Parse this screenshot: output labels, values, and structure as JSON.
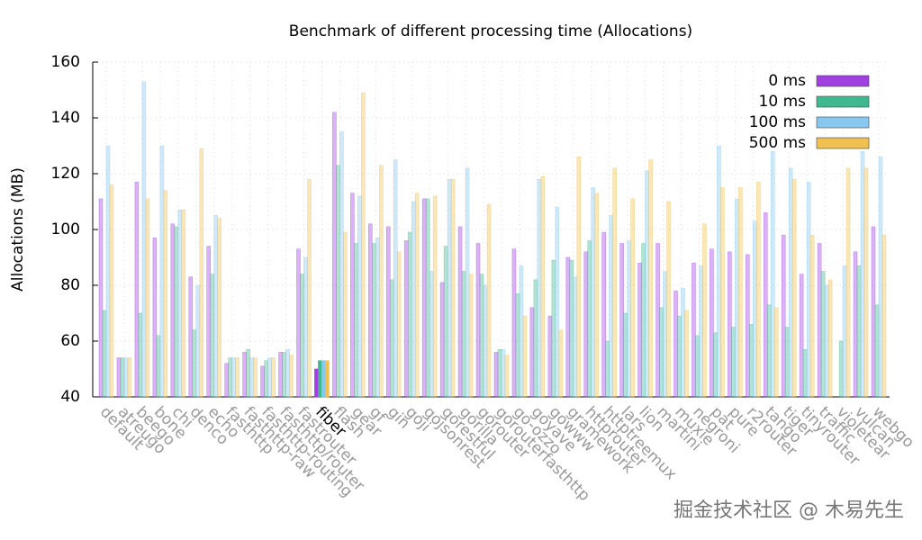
{
  "chart_data": {
    "type": "bar",
    "title": "Benchmark of different processing time (Allocations)",
    "y_label": "Allocations (MB)",
    "watermark": "掘金技术社区 @ 木易先生",
    "highlight": "fiber",
    "grid": true,
    "legend": "top-right",
    "ylim": [
      40,
      160
    ],
    "yticks": [
      40,
      60,
      80,
      100,
      120,
      140,
      160
    ],
    "categories": [
      "default",
      "atreugo",
      "beego",
      "bone",
      "chi",
      "denco",
      "echo",
      "fasthttp",
      "fasthttp-raw",
      "fasthttp-routing",
      "fasthttp/router",
      "fastrouter",
      "fiber",
      "flash",
      "gear",
      "gf",
      "gin",
      "goji",
      "gojsonrest",
      "gorestful",
      "gorilla",
      "gorouter",
      "gorouterfasthttp",
      "go-ozzo",
      "goyave",
      "gowww",
      "gramework",
      "httprouter",
      "httptreemux",
      "lars",
      "lion",
      "martini",
      "muxie",
      "negroni",
      "pat",
      "pure",
      "r2router",
      "tango",
      "tiger",
      "tinyrouter",
      "traffic",
      "violetear",
      "vulcan",
      "webgo"
    ],
    "series": [
      {
        "name": "0 ms",
        "color": "#a040e0",
        "values": [
          111,
          54,
          117,
          97,
          102,
          83,
          94,
          52,
          56,
          51,
          56,
          93,
          50,
          142,
          113,
          102,
          101,
          96,
          111,
          81,
          101,
          95,
          56,
          93,
          72,
          69,
          90,
          92,
          99,
          95,
          88,
          95,
          78,
          88,
          93,
          92,
          91,
          106,
          98,
          84,
          95,
          40,
          92,
          101
        ]
      },
      {
        "name": "10 ms",
        "color": "#40b890",
        "values": [
          71,
          54,
          70,
          62,
          101,
          64,
          84,
          54,
          57,
          53,
          56,
          84,
          53,
          123,
          95,
          95,
          82,
          99,
          111,
          94,
          85,
          84,
          57,
          77,
          82,
          89,
          89,
          96,
          60,
          70,
          95,
          72,
          69,
          62,
          63,
          65,
          66,
          73,
          65,
          57,
          85,
          60,
          87,
          73
        ]
      },
      {
        "name": "100 ms",
        "color": "#88c8f0",
        "values": [
          130,
          54,
          153,
          130,
          107,
          80,
          105,
          54,
          54,
          54,
          57,
          90,
          53,
          135,
          112,
          97,
          125,
          110,
          85,
          118,
          122,
          80,
          57,
          87,
          118,
          108,
          83,
          115,
          105,
          96,
          121,
          85,
          79,
          87,
          130,
          111,
          103,
          128,
          122,
          117,
          80,
          87,
          128,
          126
        ]
      },
      {
        "name": "500 ms",
        "color": "#f0c050",
        "values": [
          116,
          54,
          111,
          114,
          107,
          129,
          104,
          54,
          54,
          54,
          55,
          118,
          53,
          99,
          149,
          123,
          92,
          113,
          112,
          118,
          84,
          109,
          55,
          69,
          119,
          64,
          126,
          113,
          122,
          111,
          125,
          110,
          71,
          102,
          115,
          115,
          117,
          72,
          118,
          98,
          82,
          122,
          122,
          98
        ]
      }
    ]
  }
}
